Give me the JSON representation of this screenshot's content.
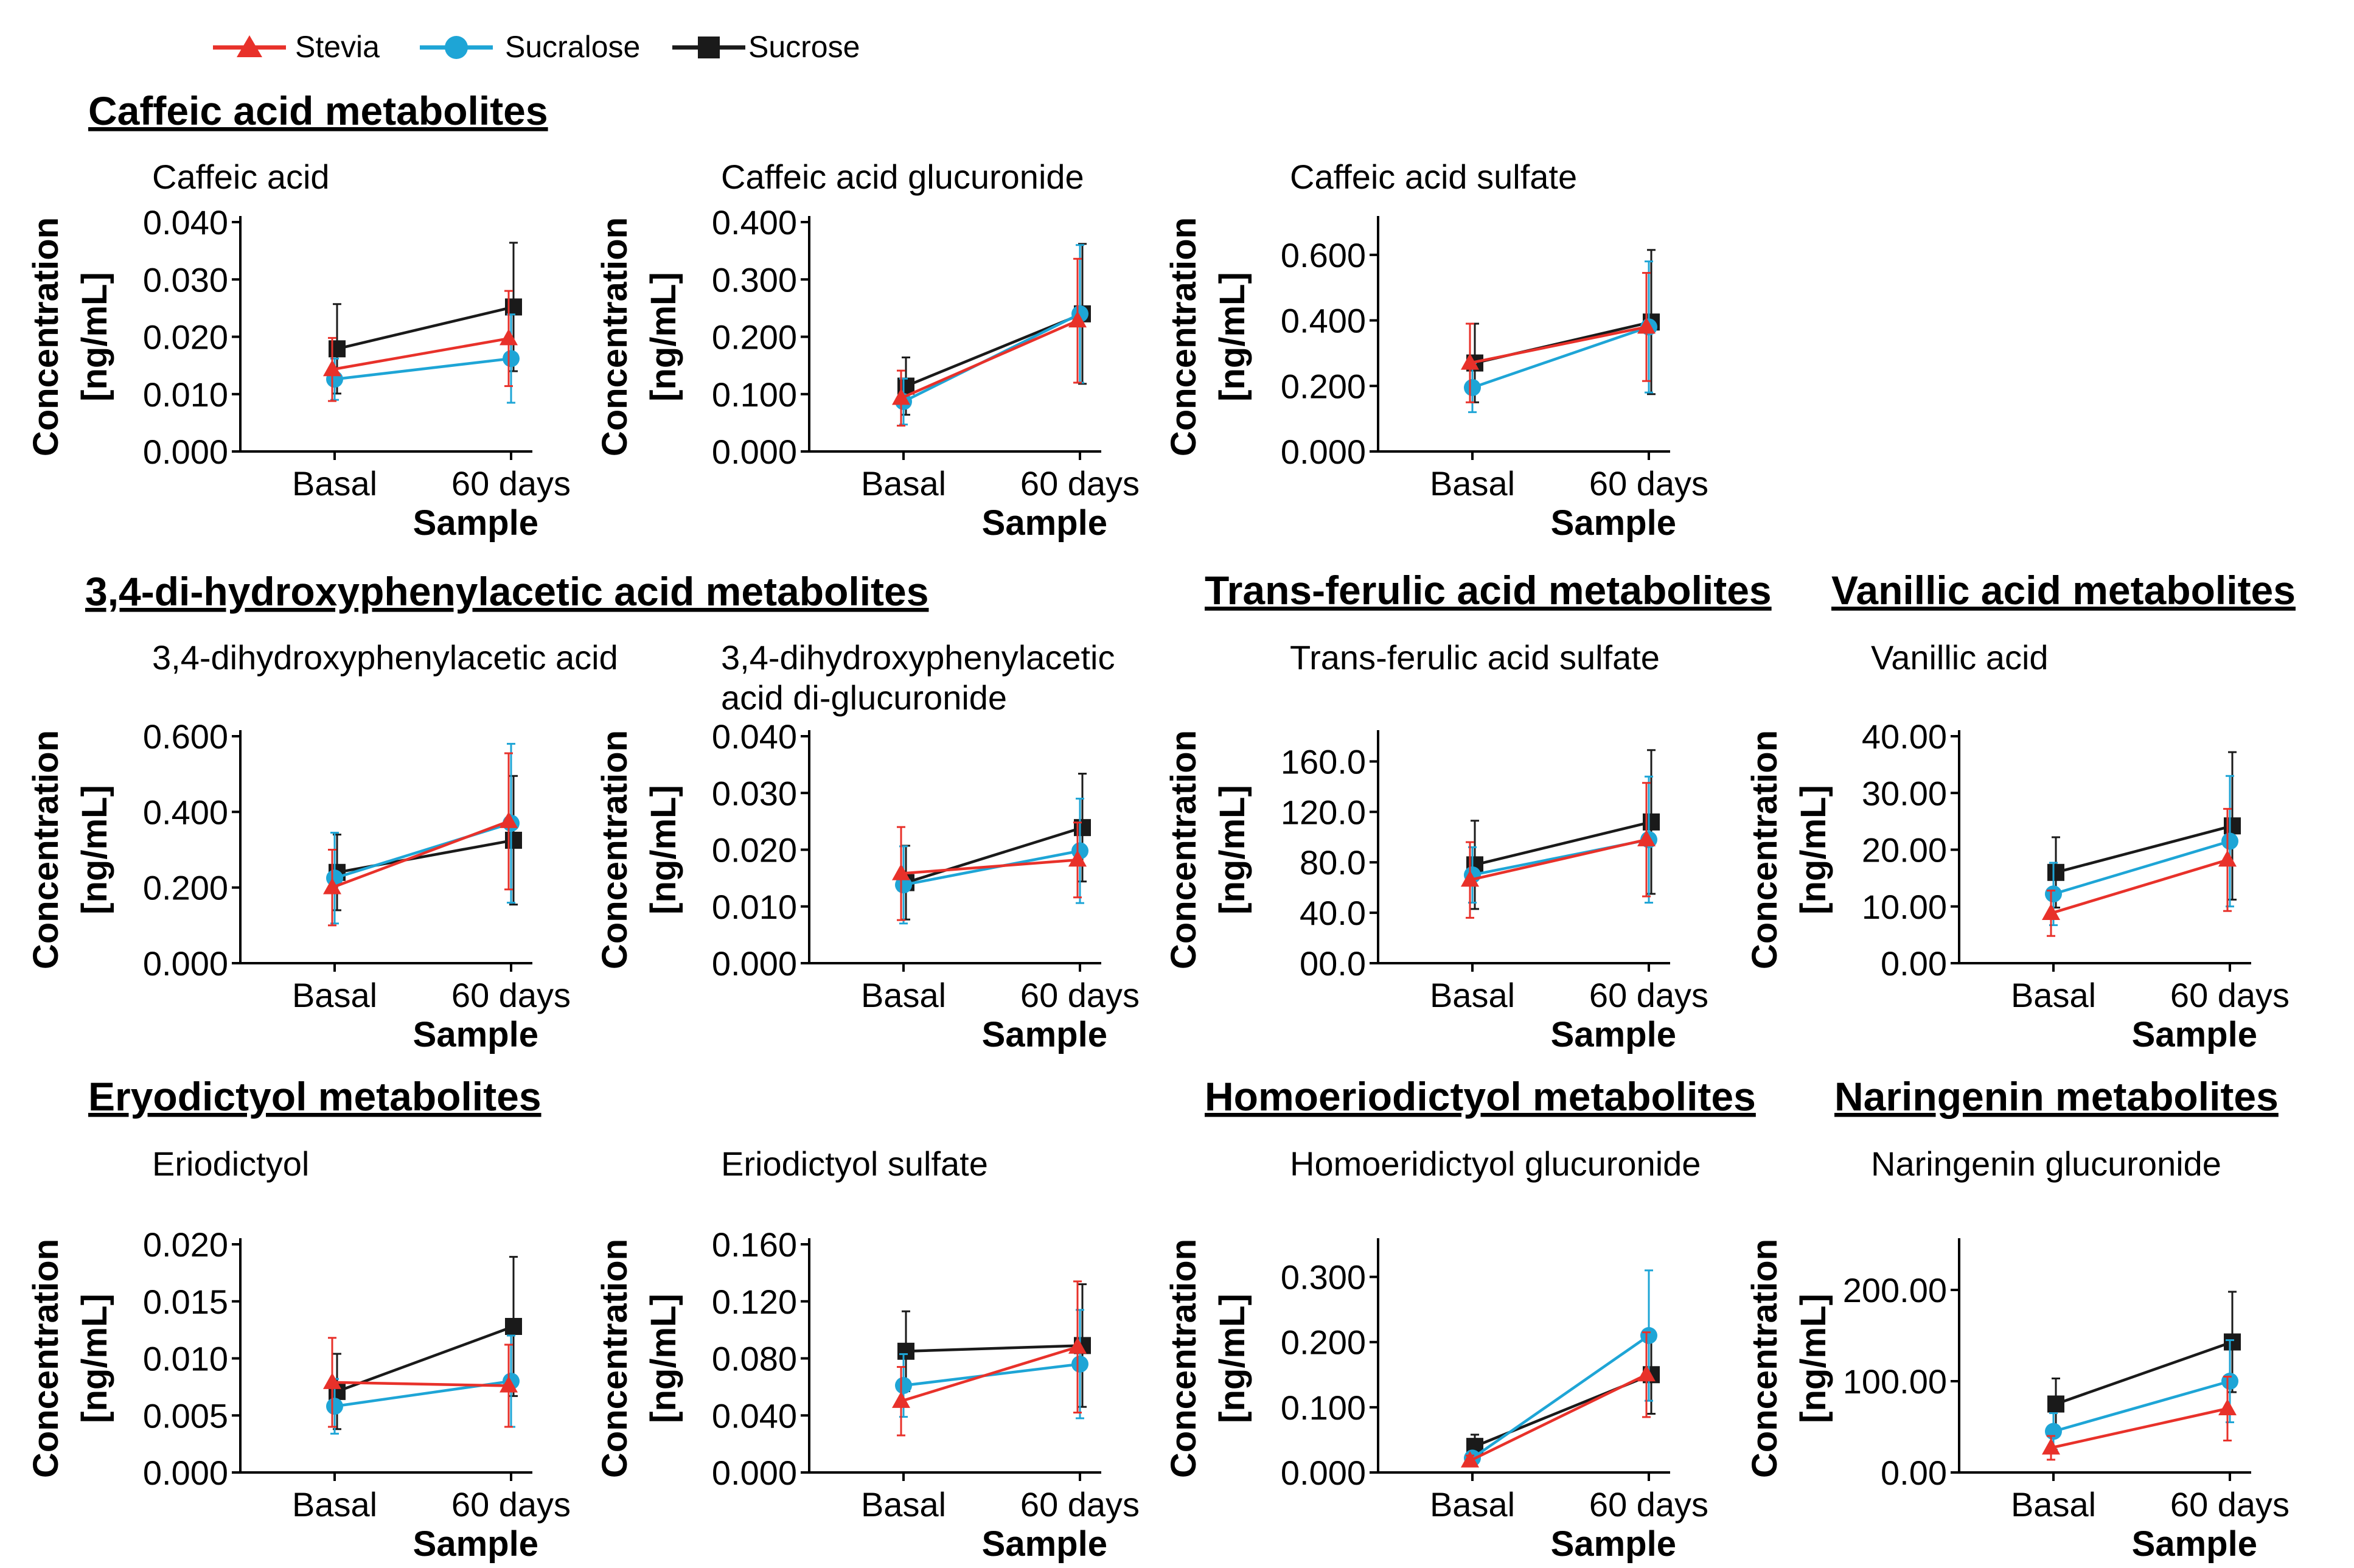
{
  "legend": [
    {
      "name": "Stevia",
      "color": "#e8312a",
      "marker": "triangle"
    },
    {
      "name": "Sucralose",
      "color": "#1ea5d6",
      "marker": "circle"
    },
    {
      "name": "Sucrose",
      "color": "#1a1a1a",
      "marker": "square"
    }
  ],
  "sections": [
    {
      "id": "caffeic",
      "title": "Caffeic acid metabolites"
    },
    {
      "id": "dopac",
      "title": "3,4-di-hydroxyphenylacetic acid metabolites"
    },
    {
      "id": "ferulic",
      "title": "Trans-ferulic acid metabolites"
    },
    {
      "id": "vanillic",
      "title": "Vanillic acid metabolites"
    },
    {
      "id": "eriodictyol",
      "title": "Eryodictyol metabolites"
    },
    {
      "id": "homoeriodictyol",
      "title": "Homoeriodictyol metabolites"
    },
    {
      "id": "naringenin",
      "title": "Naringenin metabolites"
    }
  ],
  "chart_data": [
    {
      "type": "line",
      "title": [
        "Caffeic acid"
      ],
      "xlabel": "Sample",
      "ylabel": [
        "Concentration",
        "[ng/mL]"
      ],
      "categories": [
        "Basal",
        "60 days"
      ],
      "ylim": [
        0,
        0.04
      ],
      "yticks": [
        "0.000",
        "0.010",
        "0.020",
        "0.030",
        "0.040"
      ],
      "series": [
        {
          "name": "Stevia",
          "values": [
            0.0143,
            0.0197
          ],
          "error": [
            0.0055,
            0.0083
          ]
        },
        {
          "name": "Sucralose",
          "values": [
            0.0126,
            0.0162
          ],
          "error": [
            0.0036,
            0.0077
          ]
        },
        {
          "name": "Sucrose",
          "values": [
            0.0179,
            0.0252
          ],
          "error": [
            0.0078,
            0.0112
          ]
        }
      ]
    },
    {
      "type": "line",
      "title": [
        "Caffeic acid glucuronide"
      ],
      "xlabel": "Sample",
      "ylabel": [
        "Concentration",
        "[ng/mL]"
      ],
      "categories": [
        "Basal",
        "60 days"
      ],
      "ylim": [
        0,
        0.4
      ],
      "yticks": [
        "0.000",
        "0.100",
        "0.200",
        "0.300",
        "0.400"
      ],
      "series": [
        {
          "name": "Stevia",
          "values": [
            0.093,
            0.228
          ],
          "error": [
            0.048,
            0.108
          ]
        },
        {
          "name": "Sucralose",
          "values": [
            0.087,
            0.24
          ],
          "error": [
            0.04,
            0.12
          ]
        },
        {
          "name": "Sucrose",
          "values": [
            0.114,
            0.24
          ],
          "error": [
            0.05,
            0.122
          ]
        }
      ]
    },
    {
      "type": "line",
      "title": [
        "Caffeic acid sulfate"
      ],
      "xlabel": "Sample",
      "ylabel": [
        "Concentration",
        "[ng/mL]"
      ],
      "categories": [
        "Basal",
        "60 days"
      ],
      "ylim": [
        0,
        0.7
      ],
      "yticks": [
        "0.000",
        "0.200",
        "0.400",
        "0.600"
      ],
      "series": [
        {
          "name": "Stevia",
          "values": [
            0.27,
            0.38
          ],
          "error": [
            0.12,
            0.165
          ]
        },
        {
          "name": "Sucralose",
          "values": [
            0.195,
            0.38
          ],
          "error": [
            0.075,
            0.2
          ]
        },
        {
          "name": "Sucrose",
          "values": [
            0.27,
            0.395
          ],
          "error": [
            0.12,
            0.22
          ]
        }
      ]
    },
    {
      "type": "line",
      "title": [
        "3,4-dihydroxyphenylacetic acid"
      ],
      "xlabel": "Sample",
      "ylabel": [
        "Concentration",
        "[ng/mL]"
      ],
      "categories": [
        "Basal",
        "60 days"
      ],
      "ylim": [
        0,
        0.6
      ],
      "yticks": [
        "0.000",
        "0.200",
        "0.400",
        "0.600"
      ],
      "series": [
        {
          "name": "Stevia",
          "values": [
            0.2,
            0.375
          ],
          "error": [
            0.1,
            0.18
          ]
        },
        {
          "name": "Sucralose",
          "values": [
            0.225,
            0.37
          ],
          "error": [
            0.12,
            0.21
          ]
        },
        {
          "name": "Sucrose",
          "values": [
            0.24,
            0.325
          ],
          "error": [
            0.1,
            0.17
          ]
        }
      ]
    },
    {
      "type": "line",
      "title": [
        "3,4-dihydroxyphenylacetic",
        "acid di-glucuronide"
      ],
      "xlabel": "Sample",
      "ylabel": [
        "Concentration",
        "[ng/mL]"
      ],
      "categories": [
        "Basal",
        "60 days"
      ],
      "ylim": [
        0,
        0.04
      ],
      "yticks": [
        "0.000",
        "0.010",
        "0.020",
        "0.030",
        "0.040"
      ],
      "series": [
        {
          "name": "Stevia",
          "values": [
            0.0158,
            0.0182
          ],
          "error": [
            0.0082,
            0.0066
          ]
        },
        {
          "name": "Sucralose",
          "values": [
            0.0138,
            0.0198
          ],
          "error": [
            0.0068,
            0.0092
          ]
        },
        {
          "name": "Sucrose",
          "values": [
            0.0142,
            0.0239
          ],
          "error": [
            0.0065,
            0.0095
          ]
        }
      ]
    },
    {
      "type": "line",
      "title": [
        "Trans-ferulic acid sulfate"
      ],
      "xlabel": "Sample",
      "ylabel": [
        "Concentration",
        "[ng/mL]"
      ],
      "categories": [
        "Basal",
        "60 days"
      ],
      "ylim": [
        0,
        180
      ],
      "yticks": [
        "00.0",
        "40.0",
        "80.0",
        "120.0",
        "160.0"
      ],
      "series": [
        {
          "name": "Stevia",
          "values": [
            66,
            98
          ],
          "error": [
            30,
            45
          ]
        },
        {
          "name": "Sucralose",
          "values": [
            70,
            98
          ],
          "error": [
            22,
            50
          ]
        },
        {
          "name": "Sucrose",
          "values": [
            78,
            112
          ],
          "error": [
            35,
            57
          ]
        }
      ]
    },
    {
      "type": "line",
      "title": [
        "Vanillic acid"
      ],
      "xlabel": "Sample",
      "ylabel": [
        "Concentration",
        "[ng/mL]"
      ],
      "categories": [
        "Basal",
        "60 days"
      ],
      "ylim": [
        0,
        40
      ],
      "yticks": [
        "0.00",
        "10.00",
        "20.00",
        "30.00",
        "40.00"
      ],
      "series": [
        {
          "name": "Stevia",
          "values": [
            8.8,
            18.2
          ],
          "error": [
            4,
            9
          ]
        },
        {
          "name": "Sucralose",
          "values": [
            12.2,
            21.5
          ],
          "error": [
            5.5,
            11.5
          ]
        },
        {
          "name": "Sucrose",
          "values": [
            16,
            24.2
          ],
          "error": [
            6.2,
            13
          ]
        }
      ]
    },
    {
      "type": "line",
      "title": [
        "Eriodictyol"
      ],
      "xlabel": "Sample",
      "ylabel": [
        "Concentration",
        "[ng/mL]"
      ],
      "categories": [
        "Basal",
        "60 days"
      ],
      "ylim": [
        0,
        0.02
      ],
      "yticks": [
        "0.000",
        "0.005",
        "0.010",
        "0.015",
        "0.020"
      ],
      "series": [
        {
          "name": "Stevia",
          "values": [
            0.0079,
            0.0076
          ],
          "error": [
            0.0039,
            0.0036
          ]
        },
        {
          "name": "Sucralose",
          "values": [
            0.0058,
            0.008
          ],
          "error": [
            0.0024,
            0.004
          ]
        },
        {
          "name": "Sucrose",
          "values": [
            0.0071,
            0.0128
          ],
          "error": [
            0.0033,
            0.0061
          ]
        }
      ]
    },
    {
      "type": "line",
      "title": [
        "Eriodictyol sulfate"
      ],
      "xlabel": "Sample",
      "ylabel": [
        "Concentration",
        "[ng/mL]"
      ],
      "categories": [
        "Basal",
        "60 days"
      ],
      "ylim": [
        0,
        0.16
      ],
      "yticks": [
        "0.000",
        "0.040",
        "0.080",
        "0.120",
        "0.160"
      ],
      "series": [
        {
          "name": "Stevia",
          "values": [
            0.05,
            0.088
          ],
          "error": [
            0.024,
            0.046
          ]
        },
        {
          "name": "Sucralose",
          "values": [
            0.061,
            0.076
          ],
          "error": [
            0.022,
            0.038
          ]
        },
        {
          "name": "Sucrose",
          "values": [
            0.085,
            0.089
          ],
          "error": [
            0.028,
            0.043
          ]
        }
      ]
    },
    {
      "type": "line",
      "title": [
        "Homoeridictyol glucuronide"
      ],
      "xlabel": "Sample",
      "ylabel": [
        "Concentration",
        "[ng/mL]"
      ],
      "categories": [
        "Basal",
        "60 days"
      ],
      "ylim": [
        0,
        0.35
      ],
      "yticks": [
        "0.000",
        "0.100",
        "0.200",
        "0.300"
      ],
      "series": [
        {
          "name": "Stevia",
          "values": [
            0.018,
            0.15
          ],
          "error": [
            0.008,
            0.065
          ]
        },
        {
          "name": "Sucralose",
          "values": [
            0.022,
            0.21
          ],
          "error": [
            0.01,
            0.1
          ]
        },
        {
          "name": "Sucrose",
          "values": [
            0.04,
            0.15
          ],
          "error": [
            0.018,
            0.06
          ]
        }
      ]
    },
    {
      "type": "line",
      "title": [
        "Naringenin glucuronide"
      ],
      "xlabel": "Sample",
      "ylabel": [
        "Concentration",
        "[ng/mL]"
      ],
      "categories": [
        "Basal",
        "60 days"
      ],
      "ylim": [
        0,
        250
      ],
      "yticks": [
        "0.00",
        "100.00",
        "200.00"
      ],
      "series": [
        {
          "name": "Stevia",
          "values": [
            27,
            70
          ],
          "error": [
            13,
            35
          ]
        },
        {
          "name": "Sucralose",
          "values": [
            45,
            100
          ],
          "error": [
            20,
            45
          ]
        },
        {
          "name": "Sucrose",
          "values": [
            75,
            143
          ],
          "error": [
            28,
            55
          ]
        }
      ]
    }
  ]
}
